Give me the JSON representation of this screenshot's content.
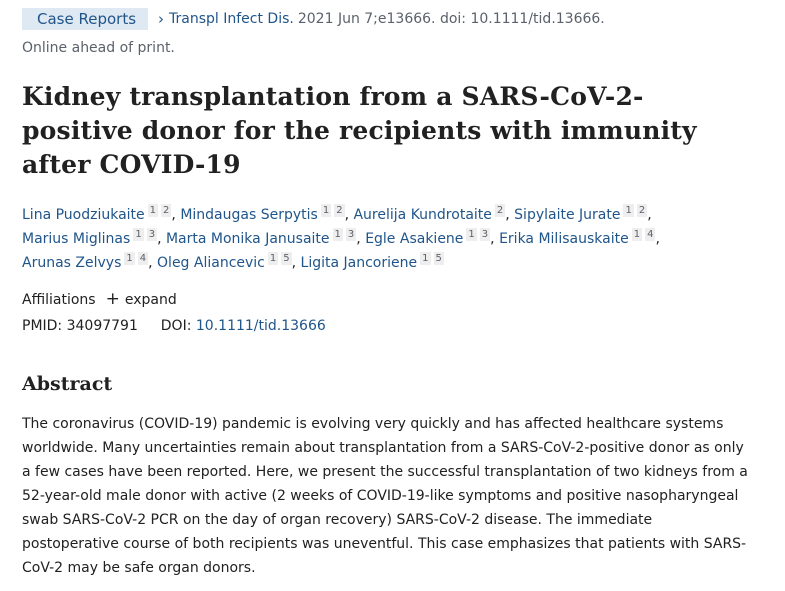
{
  "header": {
    "pub_type": "Case Reports",
    "journal": "Transpl Infect Dis.",
    "citation_rest": "2021 Jun 7;e13666. doi: 10.1111/tid.13666.",
    "status": "Online ahead of print."
  },
  "article": {
    "title": "Kidney transplantation from a SARS-CoV-2-positive donor for the recipients with immunity after COVID-19"
  },
  "authors": [
    {
      "name": "Lina Puodziukaite",
      "affs": [
        "1",
        "2"
      ]
    },
    {
      "name": "Mindaugas Serpytis",
      "affs": [
        "1",
        "2"
      ]
    },
    {
      "name": "Aurelija Kundrotaite",
      "affs": [
        "2"
      ]
    },
    {
      "name": "Sipylaite Jurate",
      "affs": [
        "1",
        "2"
      ]
    },
    {
      "name": "Marius Miglinas",
      "affs": [
        "1",
        "3"
      ]
    },
    {
      "name": "Marta Monika Janusaite",
      "affs": [
        "1",
        "3"
      ]
    },
    {
      "name": "Egle Asakiene",
      "affs": [
        "1",
        "3"
      ]
    },
    {
      "name": "Erika Milisauskaite",
      "affs": [
        "1",
        "4"
      ]
    },
    {
      "name": "Arunas Zelvys",
      "affs": [
        "1",
        "4"
      ]
    },
    {
      "name": "Oleg Aliancevic",
      "affs": [
        "1",
        "5"
      ]
    },
    {
      "name": "Ligita Jancoriene",
      "affs": [
        "1",
        "5"
      ]
    }
  ],
  "affiliations": {
    "label": "Affiliations",
    "expand_label": "expand"
  },
  "identifiers": {
    "pmid_label": "PMID:",
    "pmid": "34097791",
    "doi_label": "DOI:",
    "doi": "10.1111/tid.13666"
  },
  "abstract": {
    "heading": "Abstract",
    "text": "The coronavirus (COVID-19) pandemic is evolving very quickly and has affected healthcare systems worldwide. Many uncertainties remain about transplantation from a SARS-CoV-2-positive donor as only a few cases have been reported. Here, we present the successful transplantation of two kidneys from a 52-year-old male donor with active (2 weeks of COVID-19-like symptoms and positive nasopharyngeal swab SARS-CoV-2 PCR on the day of organ recovery) SARS-CoV-2 disease. The immediate postoperative course of both recipients was uneventful. This case emphasizes that patients with SARS-CoV-2 may be safe organ donors."
  },
  "colors": {
    "link": "#20558a",
    "badge_bg": "#dfe9f3",
    "text": "#212121",
    "muted": "#5b616b"
  }
}
